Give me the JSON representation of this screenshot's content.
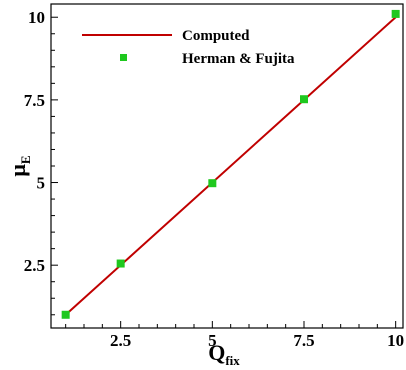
{
  "chart_data": {
    "type": "scatter",
    "title": "",
    "xlabel": {
      "main": "Q",
      "sub": "fix"
    },
    "ylabel": {
      "main": "μ",
      "sub": "E"
    },
    "xlim": [
      0.6,
      10.2
    ],
    "ylim": [
      0.6,
      10.4
    ],
    "x_ticks": [
      2.5,
      5,
      7.5,
      10
    ],
    "x_tick_labels": [
      "2.5",
      "5",
      "7.5",
      "10"
    ],
    "y_ticks": [
      2.5,
      5,
      7.5,
      10
    ],
    "y_tick_labels": [
      "2.5",
      "5",
      "7.5",
      "10"
    ],
    "grid": false,
    "legend_position": "top-left",
    "series": [
      {
        "name": "Computed",
        "kind": "line",
        "color": "#c00000",
        "x": [
          1,
          10
        ],
        "y": [
          1,
          10
        ]
      },
      {
        "name": "Herman & Fujita",
        "kind": "markers",
        "color": "#1ec81e",
        "x": [
          1,
          2.5,
          5,
          7.5,
          10
        ],
        "y": [
          1,
          2.55,
          4.98,
          7.52,
          10.1
        ]
      }
    ]
  }
}
